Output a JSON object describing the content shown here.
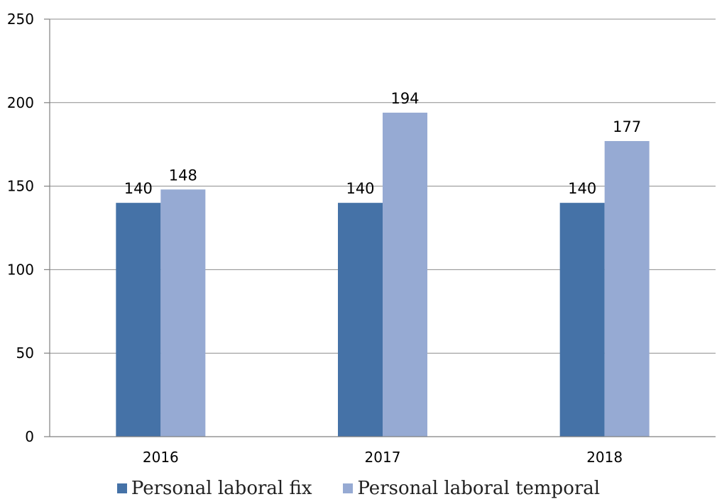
{
  "chart_data": {
    "type": "bar",
    "categories": [
      "2016",
      "2017",
      "2018"
    ],
    "series": [
      {
        "name": "Personal laboral fix",
        "values": [
          140,
          140,
          140
        ],
        "color": "#4572a7"
      },
      {
        "name": "Personal laboral temporal",
        "values": [
          148,
          194,
          177
        ],
        "color": "#96aad3"
      }
    ],
    "y_ticks": [
      "0",
      "50",
      "100",
      "150",
      "200",
      "250"
    ],
    "ylim": [
      0,
      250
    ],
    "grid": true,
    "legend_position": "bottom"
  }
}
